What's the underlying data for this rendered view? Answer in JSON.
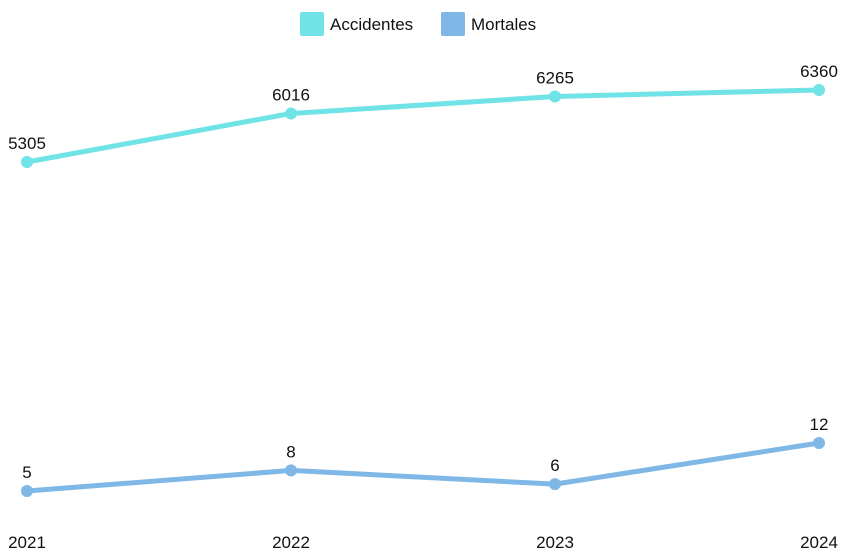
{
  "chart_data": {
    "type": "line",
    "title": "",
    "xlabel": "",
    "ylabel": "",
    "categories": [
      "2021",
      "2022",
      "2023",
      "2024"
    ],
    "series": [
      {
        "name": "Accidentes",
        "values": [
          5305,
          6016,
          6265,
          6360
        ],
        "color": "#6fe3e6"
      },
      {
        "name": "Mortales",
        "values": [
          5,
          8,
          6,
          12
        ],
        "color": "#7fb8e6"
      }
    ],
    "legend": {
      "position": "top-center",
      "items": [
        {
          "label": "Accidentes",
          "color": "#6fe3e6"
        },
        {
          "label": "Mortales",
          "color": "#7fb8e6"
        }
      ]
    },
    "data_labels": true,
    "grid": false,
    "axes_visible": false
  }
}
